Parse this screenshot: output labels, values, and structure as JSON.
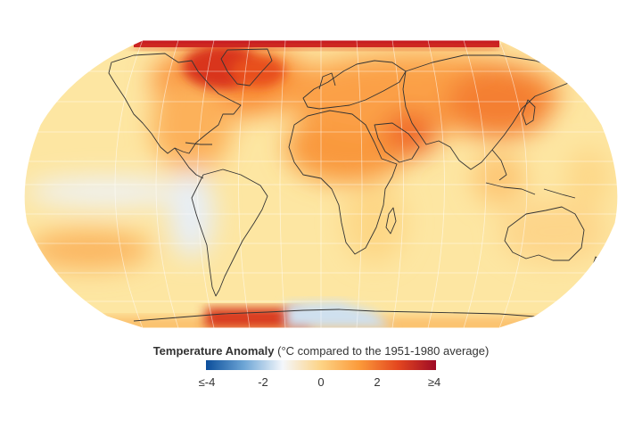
{
  "legend": {
    "title_bold": "Temperature Anomaly",
    "title_rest": " (°C compared to the 1951-1980 average)",
    "ticks": [
      "≤-4",
      "-2",
      "0",
      "2",
      "≥4"
    ],
    "tick_values": [
      -4,
      -2,
      0,
      2,
      4
    ],
    "colors": [
      "#0b4e9b",
      "#6ea6d6",
      "#f4f7fb",
      "#fdd385",
      "#fb9a3a",
      "#e4471f",
      "#9e0a26"
    ]
  },
  "map": {
    "projection": "Robinson",
    "ocean_base_color": "#fde6a2",
    "coastline_color": "#333333"
  }
}
